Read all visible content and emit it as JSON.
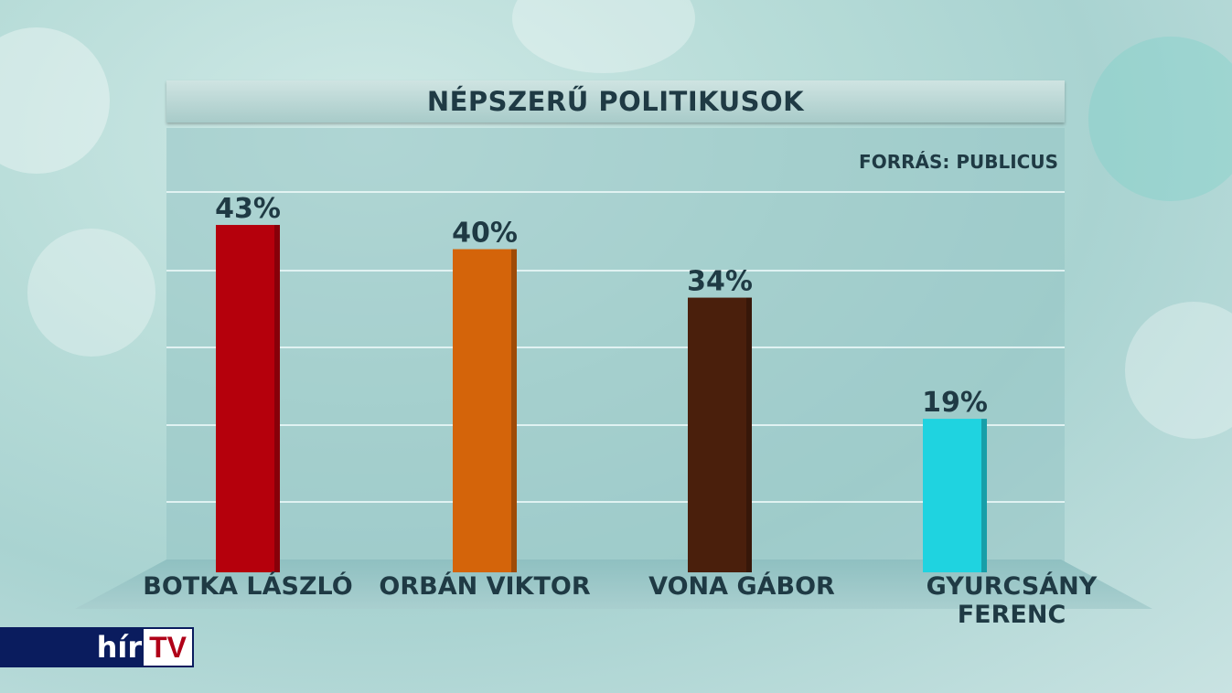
{
  "title": "NÉPSZERŰ POLITIKUSOK",
  "source": "FORRÁS: PUBLICUS",
  "logo": {
    "hir": "hír",
    "tv": "TV"
  },
  "chart_data": {
    "type": "bar",
    "title": "NÉPSZERŰ POLITIKUSOK",
    "categories": [
      "BOTKA LÁSZLÓ",
      "ORBÁN VIKTOR",
      "VONA GÁBOR",
      "GYURCSÁNY FERENC"
    ],
    "values": [
      43,
      40,
      34,
      19
    ],
    "value_labels": [
      "43%",
      "40%",
      "34%",
      "19%"
    ],
    "colors": [
      "#b5000c",
      "#d4640a",
      "#4a1f0c",
      "#1fd3e0"
    ],
    "ylim": [
      0,
      55
    ],
    "grid": true,
    "annotation": "FORRÁS: PUBLICUS"
  }
}
